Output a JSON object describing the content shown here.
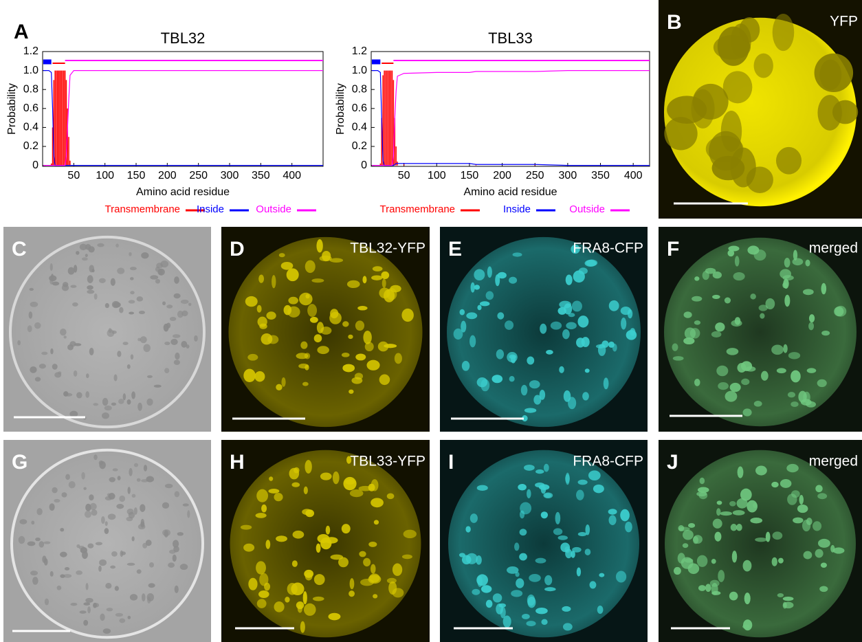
{
  "chart_data": [
    {
      "type": "line",
      "title": "TBL32",
      "xlabel": "Amino acid residue",
      "ylabel": "Probability",
      "xlim": [
        0,
        450
      ],
      "ylim": [
        -0.01,
        1.2
      ],
      "xticks": [
        50,
        100,
        150,
        200,
        250,
        300,
        350,
        400
      ],
      "yticks": [
        0,
        0.2,
        0.4,
        0.6,
        0.8,
        {
          "value": 1,
          "label": "1.0"
        },
        1.2
      ],
      "legend": "bottom",
      "x": [
        1,
        10,
        14,
        16,
        18,
        20,
        22,
        24,
        26,
        28,
        30,
        32,
        34,
        36,
        38,
        40,
        42,
        44,
        50,
        100,
        200,
        300,
        400,
        450
      ],
      "series": [
        {
          "name": "Transmembrane",
          "color": "#ff0000",
          "style": "impulse",
          "span": [
            16,
            36
          ],
          "values": [
            0,
            0,
            0.02,
            0.4,
            0.9,
            1,
            1,
            1,
            1,
            1,
            1,
            1,
            1,
            1,
            0.9,
            0.6,
            0.3,
            0.05,
            0,
            0,
            0,
            0,
            0,
            0
          ]
        },
        {
          "name": "Inside",
          "color": "#0000ff",
          "style": "line",
          "span": [
            1,
            14
          ],
          "values": [
            1,
            1,
            0.98,
            0.6,
            0.1,
            0,
            0,
            0,
            0,
            0,
            0,
            0,
            0,
            0,
            0,
            0,
            0,
            0,
            0,
            0,
            0,
            0,
            0,
            0
          ]
        },
        {
          "name": "Outside",
          "color": "#ff00ff",
          "style": "line",
          "span": [
            36,
            450
          ],
          "values": [
            0,
            0,
            0,
            0,
            0,
            0,
            0,
            0,
            0,
            0,
            0,
            0,
            0,
            0,
            0.1,
            0.4,
            0.7,
            0.95,
            1,
            1,
            1,
            1,
            1,
            1
          ]
        }
      ]
    },
    {
      "type": "line",
      "title": "TBL33",
      "xlabel": "Amino acid residue",
      "ylabel": "Probability",
      "xlim": [
        0,
        425
      ],
      "ylim": [
        -0.01,
        1.2
      ],
      "xticks": [
        50,
        100,
        150,
        200,
        250,
        300,
        350,
        400
      ],
      "yticks": [
        0,
        0.2,
        0.4,
        0.6,
        0.8,
        {
          "value": 1,
          "label": "1.0"
        },
        1.2
      ],
      "legend": "bottom",
      "x": [
        1,
        10,
        14,
        16,
        18,
        20,
        22,
        24,
        26,
        28,
        30,
        32,
        34,
        36,
        38,
        40,
        50,
        100,
        150,
        160,
        200,
        250,
        300,
        400,
        425
      ],
      "series": [
        {
          "name": "Transmembrane",
          "color": "#ff0000",
          "style": "impulse",
          "span": [
            16,
            34
          ],
          "values": [
            0,
            0,
            0.02,
            0.5,
            0.95,
            1,
            1,
            1,
            1,
            1,
            1,
            1,
            0.9,
            0.5,
            0.2,
            0.04,
            0.01,
            0,
            0,
            0.01,
            0,
            0.01,
            0,
            0,
            0
          ]
        },
        {
          "name": "Inside",
          "color": "#0000ff",
          "style": "line",
          "span": [
            1,
            14
          ],
          "values": [
            1,
            1,
            0.98,
            0.5,
            0.05,
            0,
            0,
            0,
            0,
            0,
            0,
            0,
            0,
            0.01,
            0.02,
            0.02,
            0.02,
            0.02,
            0.02,
            0.01,
            0.01,
            0.01,
            0,
            0,
            0
          ]
        },
        {
          "name": "Outside",
          "color": "#ff00ff",
          "style": "line",
          "span": [
            34,
            425
          ],
          "values": [
            0,
            0,
            0,
            0,
            0,
            0,
            0,
            0,
            0,
            0,
            0,
            0,
            0.1,
            0.5,
            0.78,
            0.94,
            0.97,
            0.98,
            0.98,
            0.99,
            0.99,
            0.99,
            1,
            1,
            1
          ]
        }
      ]
    }
  ],
  "panels": [
    {
      "label": "A"
    },
    {
      "label": "B",
      "caption": "YFP"
    },
    {
      "label": "C"
    },
    {
      "label": "D",
      "caption": "TBL32-YFP"
    },
    {
      "label": "E",
      "caption": "FRA8-CFP"
    },
    {
      "label": "F",
      "caption": "merged"
    },
    {
      "label": "G"
    },
    {
      "label": "H",
      "caption": "TBL33-YFP"
    },
    {
      "label": "I",
      "caption": "FRA8-CFP"
    },
    {
      "label": "J",
      "caption": "merged"
    }
  ]
}
